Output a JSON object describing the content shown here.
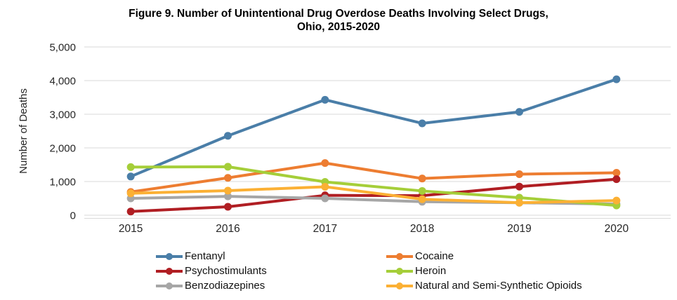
{
  "chart_data": {
    "type": "line",
    "title": "Figure 9. Number of Unintentional Drug Overdose Deaths Involving Select Drugs, Ohio, 2015-2020",
    "title_lines": [
      "Figure 9. Number of Unintentional Drug Overdose Deaths Involving Select Drugs,",
      "Ohio, 2015-2020"
    ],
    "xlabel": "",
    "ylabel": "Number of Deaths",
    "ylim": [
      0,
      5000
    ],
    "y_tick_step": 1000,
    "y_ticks": [
      "0",
      "1,000",
      "2,000",
      "3,000",
      "4,000",
      "5,000"
    ],
    "categories": [
      "2015",
      "2016",
      "2017",
      "2018",
      "2019",
      "2020"
    ],
    "grid": "horizontal",
    "legend_position": "bottom",
    "series": [
      {
        "name": "Fentanyl",
        "color": "#4A7EA8",
        "values": [
          1150,
          2360,
          3430,
          2730,
          3070,
          4040
        ]
      },
      {
        "name": "Cocaine",
        "color": "#ED7D31",
        "values": [
          690,
          1110,
          1550,
          1090,
          1220,
          1260
        ]
      },
      {
        "name": "Psychostimulants",
        "color": "#B01E23",
        "values": [
          110,
          250,
          590,
          580,
          850,
          1070
        ]
      },
      {
        "name": "Heroin",
        "color": "#A5CE39",
        "values": [
          1430,
          1440,
          990,
          720,
          520,
          290
        ]
      },
      {
        "name": "Benzodiazepines",
        "color": "#A6A6A6",
        "values": [
          500,
          560,
          500,
          400,
          370,
          330
        ]
      },
      {
        "name": "Natural and Semi-Synthetic Opioids",
        "color": "#FBB034",
        "values": [
          650,
          730,
          845,
          475,
          370,
          435
        ]
      }
    ],
    "draw_order": [
      0,
      1,
      2,
      4,
      3,
      5
    ],
    "gridline_color": "#D9D9D9",
    "axis_text_color": "#262626"
  }
}
